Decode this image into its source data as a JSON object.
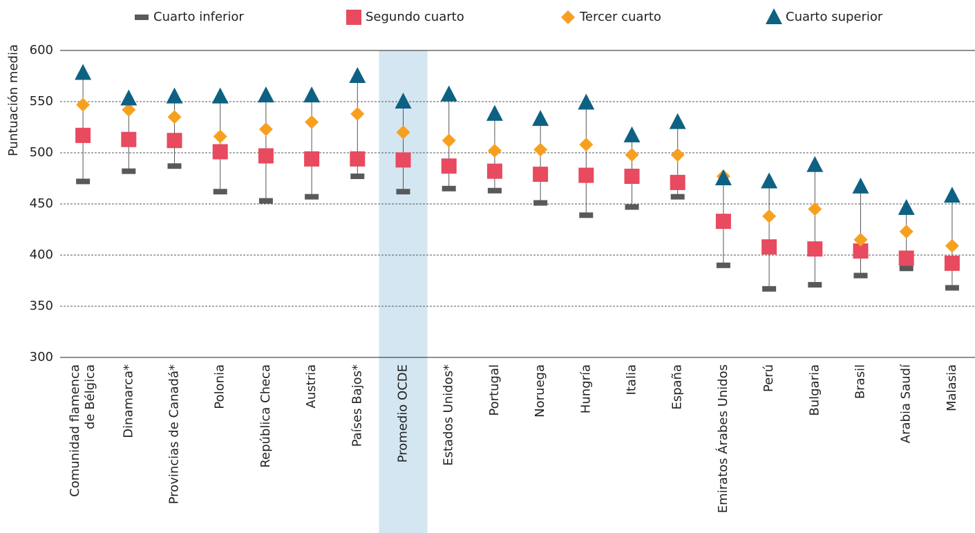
{
  "chart_data": {
    "type": "quartile-dots",
    "y_label": "Puntuación media",
    "categories": [
      [
        "Comunidad flamenca",
        "de Bélgica"
      ],
      "Dinamarca*",
      "Provincias de Canadá*",
      "Polonia",
      "República Checa",
      "Austria",
      "Países Bajos*",
      "Promedio OCDE",
      "Estados Unidos*",
      "Portugal",
      "Noruega",
      "Hungría",
      "Italia",
      "España",
      "Emiratos Árabes Unidos",
      "Perú",
      "Bulgaria",
      "Brasil",
      "Arabia Saudí",
      "Malasia"
    ],
    "highlight_category": 7,
    "highlight_color": "#d4e6f1",
    "series": [
      {
        "name": "Cuarto inferior",
        "color": "#58595b",
        "marker": "dash",
        "values": [
          472,
          482,
          487,
          462,
          453,
          457,
          477,
          462,
          465,
          463,
          451,
          439,
          447,
          457,
          390,
          367,
          371,
          380,
          387,
          368
        ]
      },
      {
        "name": "Segundo cuarto",
        "color": "#e84a5f",
        "marker": "square",
        "values": [
          517,
          513,
          512,
          501,
          497,
          494,
          494,
          493,
          487,
          482,
          479,
          478,
          477,
          471,
          433,
          408,
          406,
          404,
          397,
          392
        ]
      },
      {
        "name": "Tercer cuarto",
        "color": "#f7a020",
        "marker": "diamond",
        "values": [
          547,
          542,
          535,
          516,
          523,
          530,
          538,
          520,
          512,
          502,
          503,
          508,
          498,
          498,
          477,
          438,
          445,
          415,
          423,
          409
        ]
      },
      {
        "name": "Cuarto superior",
        "color": "#0e6183",
        "marker": "triangle",
        "values": [
          578,
          553,
          555,
          555,
          556,
          556,
          575,
          550,
          557,
          538,
          533,
          549,
          517,
          530,
          475,
          472,
          488,
          467,
          446,
          458
        ]
      }
    ],
    "ylim": [
      300,
      600
    ],
    "yticks": [
      300,
      350,
      400,
      450,
      500,
      550,
      600
    ],
    "grid": true
  }
}
